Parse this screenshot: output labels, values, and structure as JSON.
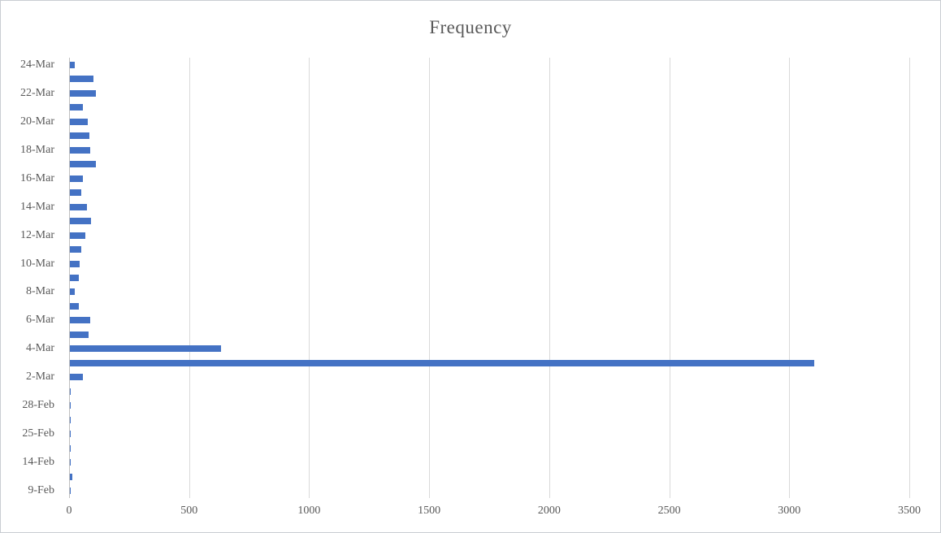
{
  "chart": {
    "title": "Frequency"
  },
  "chart_data": {
    "type": "bar",
    "orientation": "horizontal",
    "title": "Frequency",
    "xlabel": "",
    "ylabel": "",
    "xlim": [
      0,
      3500
    ],
    "x_ticks": [
      0,
      500,
      1000,
      1500,
      2000,
      2500,
      3000,
      3500
    ],
    "grid": "vertical-only",
    "legend": "none",
    "note": "31 rows top-to-bottom; y-axis shows a label on every other row only; empty string means unlabeled row",
    "categories": [
      "24-Mar",
      "",
      "22-Mar",
      "",
      "20-Mar",
      "",
      "18-Mar",
      "",
      "16-Mar",
      "",
      "14-Mar",
      "",
      "12-Mar",
      "",
      "10-Mar",
      "",
      "8-Mar",
      "",
      "6-Mar",
      "",
      "4-Mar",
      "",
      "2-Mar",
      "",
      "28-Feb",
      "",
      "25-Feb",
      "",
      "14-Feb",
      "",
      "9-Feb"
    ],
    "values": [
      21,
      97,
      107,
      54,
      73,
      80,
      84,
      107,
      55,
      48,
      72,
      89,
      63,
      48,
      42,
      38,
      21,
      37,
      85,
      79,
      629,
      3100,
      55,
      5,
      4,
      4,
      4,
      4,
      4,
      9,
      4
    ],
    "colors": {
      "bar": "#4472C4",
      "gridline": "#D9D9D9",
      "axis_line": "#BFBFBF",
      "text": "#595959",
      "background": "#FFFFFF"
    }
  }
}
